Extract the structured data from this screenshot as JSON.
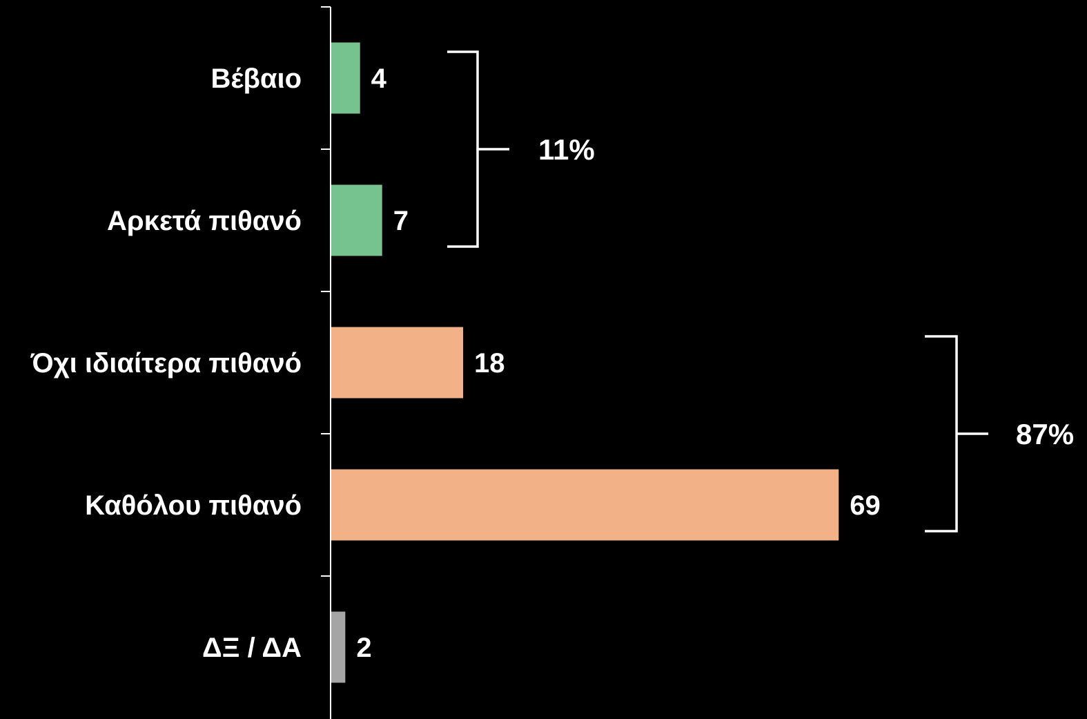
{
  "chart_data": {
    "type": "bar",
    "orientation": "horizontal",
    "categories": [
      "Βέβαιο",
      "Αρκετά πιθανό",
      "Όχι ιδιαίτερα πιθανό",
      "Καθόλου πιθανό",
      "ΔΞ / ΔΑ"
    ],
    "values": [
      4,
      7,
      18,
      69,
      2
    ],
    "colors": [
      "#77c390",
      "#77c390",
      "#f2b186",
      "#f2b186",
      "#a5a5a5"
    ],
    "value_labels": [
      "4",
      "7",
      "18",
      "69",
      "2"
    ],
    "xlim": [
      0,
      100
    ],
    "grid": false,
    "groups": [
      {
        "label": "11%",
        "from": 0,
        "to": 1
      },
      {
        "label": "87%",
        "from": 2,
        "to": 3
      }
    ]
  }
}
